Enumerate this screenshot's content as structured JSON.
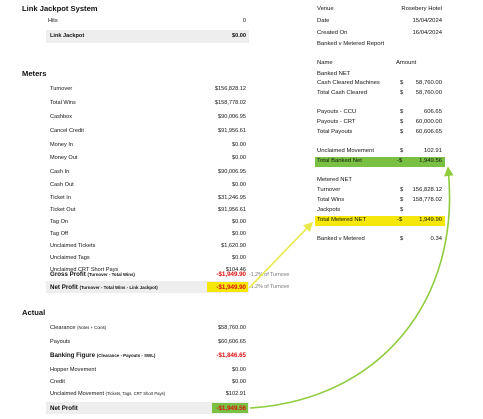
{
  "left": {
    "link_jackpot": {
      "title": "Link Jackpot System",
      "rows": [
        {
          "label": "Hits",
          "value": "0"
        },
        {
          "label": "Link Jackpot",
          "value": "$0.00"
        }
      ]
    },
    "meters": {
      "title": "Meters",
      "rows": [
        {
          "label": "Turnover",
          "value": "$156,828.12"
        },
        {
          "label": "Total Wins",
          "value": "$158,778.02"
        },
        {
          "label": "Cashbox",
          "value": "$90,006.95"
        },
        {
          "label": "Cancel Credit",
          "value": "$91,956.61"
        },
        {
          "label": "Money In",
          "value": "$0.00"
        },
        {
          "label": "Money Out",
          "value": "$0.00"
        },
        {
          "label": "Cash In",
          "value": "$90,006.95"
        },
        {
          "label": "Cash Out",
          "value": "$0.00"
        },
        {
          "label": "Ticket In",
          "value": "$31,246.95"
        },
        {
          "label": "Ticket Out",
          "value": "$91,956.61"
        },
        {
          "label": "Tag On",
          "value": "$0.00"
        },
        {
          "label": "Tag Off",
          "value": "$0.00"
        },
        {
          "label": "Unclaimed Tickets",
          "value": "$1,620.90"
        },
        {
          "label": "Unclaimed Tags",
          "value": "$0.00"
        },
        {
          "label": "Unclaimed CRT Short Pays",
          "value": "$104.46"
        }
      ],
      "gross_profit": {
        "label": "Gross Profit",
        "sub": "(Turnover - Total Wins)",
        "value": "-$1,949.90",
        "pct": "-1.2% of Turnove"
      },
      "net_profit": {
        "label": "Net Profit",
        "sub": "(Turnover - Total Wins - Link Jackpot)",
        "value": "-$1,949.90",
        "pct": "-1.2% of Turnove"
      }
    },
    "actual": {
      "title": "Actual",
      "clearance": {
        "label": "Clearance",
        "sub": "(Notes + Coins)",
        "value": "$58,760.00"
      },
      "payouts": {
        "label": "Payouts",
        "value": "$60,606.65"
      },
      "banking": {
        "label": "Banking Figure",
        "sub": "(Clearance - Payouts - SWL)",
        "value": "-$1,846.65"
      },
      "hopper": {
        "label": "Hopper Movement",
        "value": "$0.00"
      },
      "credit": {
        "label": "Credit",
        "value": "$0.00"
      },
      "unclaimed": {
        "label": "Unclaimed Movement",
        "sub": "(Tickets, Tags, CRT Short Pays)",
        "value": "$102.91"
      },
      "net_profit": {
        "label": "Net Profit",
        "value": "-$1,949.56"
      }
    }
  },
  "right": {
    "header": [
      {
        "label": "Venue",
        "value": "Rosebery Hotel"
      },
      {
        "label": "Date",
        "value": "15/04/2024"
      },
      {
        "label": "Created On",
        "value": "16/04/2024"
      }
    ],
    "report_title": "Banked v Metered Report",
    "col_name": "Name",
    "col_amount": "Amount",
    "banked_net_title": "Banked NET",
    "banked_rows": [
      {
        "label": "Cash Cleared Machines",
        "cur": "$",
        "value": "58,760.00"
      },
      {
        "label": "Total Cash Cleared",
        "cur": "$",
        "value": "58,760.00"
      }
    ],
    "payout_rows": [
      {
        "label": "Payouts - CCU",
        "cur": "$",
        "value": "606.65"
      },
      {
        "label": "Payouts - CRT",
        "cur": "$",
        "value": "60,000.00"
      },
      {
        "label": "Total Payouts",
        "cur": "$",
        "value": "60,606.65"
      }
    ],
    "unclaimed_movement": {
      "label": "Unclaimed Movement",
      "cur": "$",
      "value": "102.91"
    },
    "total_banked_net": {
      "label": "Total Banked Net",
      "cur": "-$",
      "value": "1,949.56"
    },
    "metered_net_title": "Metered NET",
    "metered_rows": [
      {
        "label": "Turnover",
        "cur": "$",
        "value": "156,828.12"
      },
      {
        "label": "Total Wins",
        "cur": "$",
        "value": "158,778.02"
      },
      {
        "label": "Jackpots",
        "cur": "$",
        "value": ""
      }
    ],
    "total_metered_net": {
      "label": "Total Metered NET",
      "cur": "-$",
      "value": "1,949.90"
    },
    "banked_v_metered": {
      "label": "Banked v Metered",
      "cur": "$",
      "value": "0.34"
    }
  },
  "colors": {
    "yellow_highlight": "#f5e70a",
    "green_highlight": "#7ac143",
    "red_text": "#dd1111"
  }
}
